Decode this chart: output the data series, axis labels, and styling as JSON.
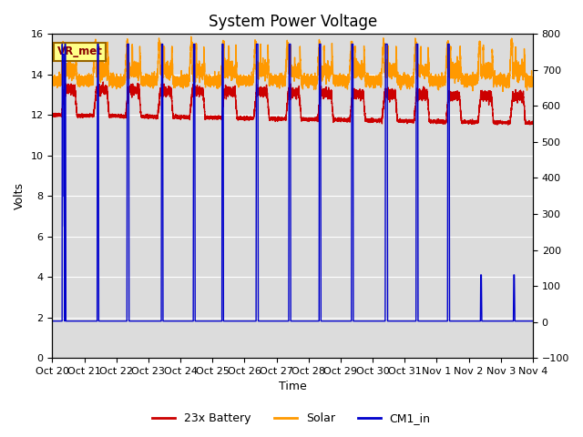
{
  "title": "System Power Voltage",
  "xlabel": "Time",
  "ylabel_left": "Volts",
  "ylim_left": [
    0,
    16
  ],
  "ylim_right": [
    -100,
    800
  ],
  "yticks_left": [
    0,
    2,
    4,
    6,
    8,
    10,
    12,
    14,
    16
  ],
  "yticks_right": [
    -100,
    0,
    100,
    200,
    300,
    400,
    500,
    600,
    700,
    800
  ],
  "bg_color": "#dcdcdc",
  "grid_color": "white",
  "annotation_text": "VR_met",
  "annotation_box_facecolor": "#ffff88",
  "annotation_box_edgecolor": "#996600",
  "legend_items": [
    "23x Battery",
    "Solar",
    "CM1_in"
  ],
  "battery_color": "#cc0000",
  "solar_color": "#ff9900",
  "cm1_color": "#0000cc",
  "x_tick_labels": [
    "Oct 20",
    "Oct 21",
    "Oct 22",
    "Oct 23",
    "Oct 24",
    "Oct 25",
    "Oct 26",
    "Oct 27",
    "Oct 28",
    "Oct 29",
    "Oct 30",
    "Oct 31",
    "Nov 1",
    "Nov 2",
    "Nov 3",
    "Nov 4"
  ],
  "title_fontsize": 12,
  "axis_fontsize": 9,
  "tick_fontsize": 8
}
